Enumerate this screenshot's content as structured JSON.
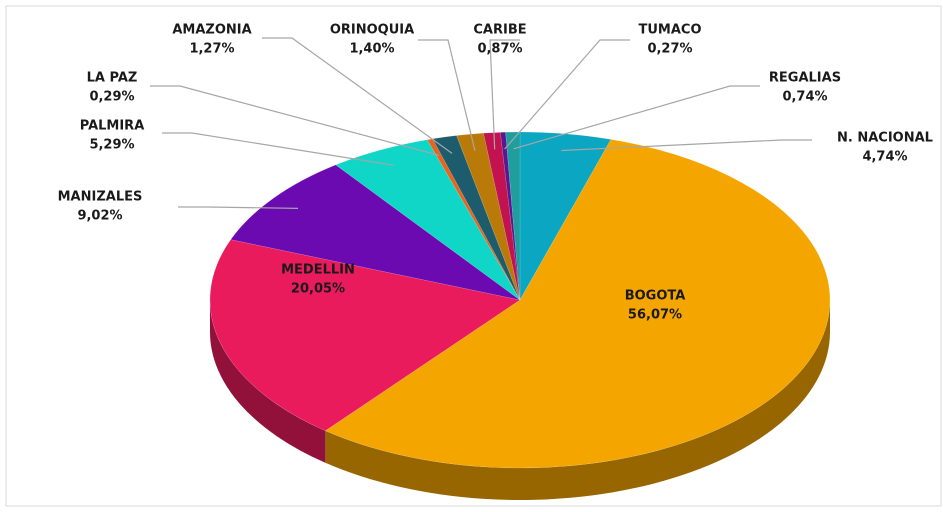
{
  "chart_data": {
    "type": "pie",
    "categories": [
      "N. NACIONAL",
      "BOGOTA",
      "MEDELLIN",
      "MANIZALES",
      "PALMIRA",
      "LA PAZ",
      "AMAZONIA",
      "ORINOQUIA",
      "CARIBE",
      "TUMACO",
      "REGALIAS"
    ],
    "values": [
      4.74,
      56.07,
      20.05,
      9.02,
      5.29,
      0.29,
      1.27,
      1.4,
      0.87,
      0.27,
      0.74
    ],
    "value_labels": [
      "4,74%",
      "56,07%",
      "20,05%",
      "9,02%",
      "5,29%",
      "0,29%",
      "1,27%",
      "1,40%",
      "0,87%",
      "0,27%",
      "0,74%"
    ],
    "colors": [
      "#0aa6c2",
      "#f5a500",
      "#ea1b5d",
      "#6a0ab0",
      "#0fd6c6",
      "#e8631c",
      "#1c5c6c",
      "#b97a0a",
      "#c2124f",
      "#5a1890",
      "#1f9e9e"
    ]
  }
}
